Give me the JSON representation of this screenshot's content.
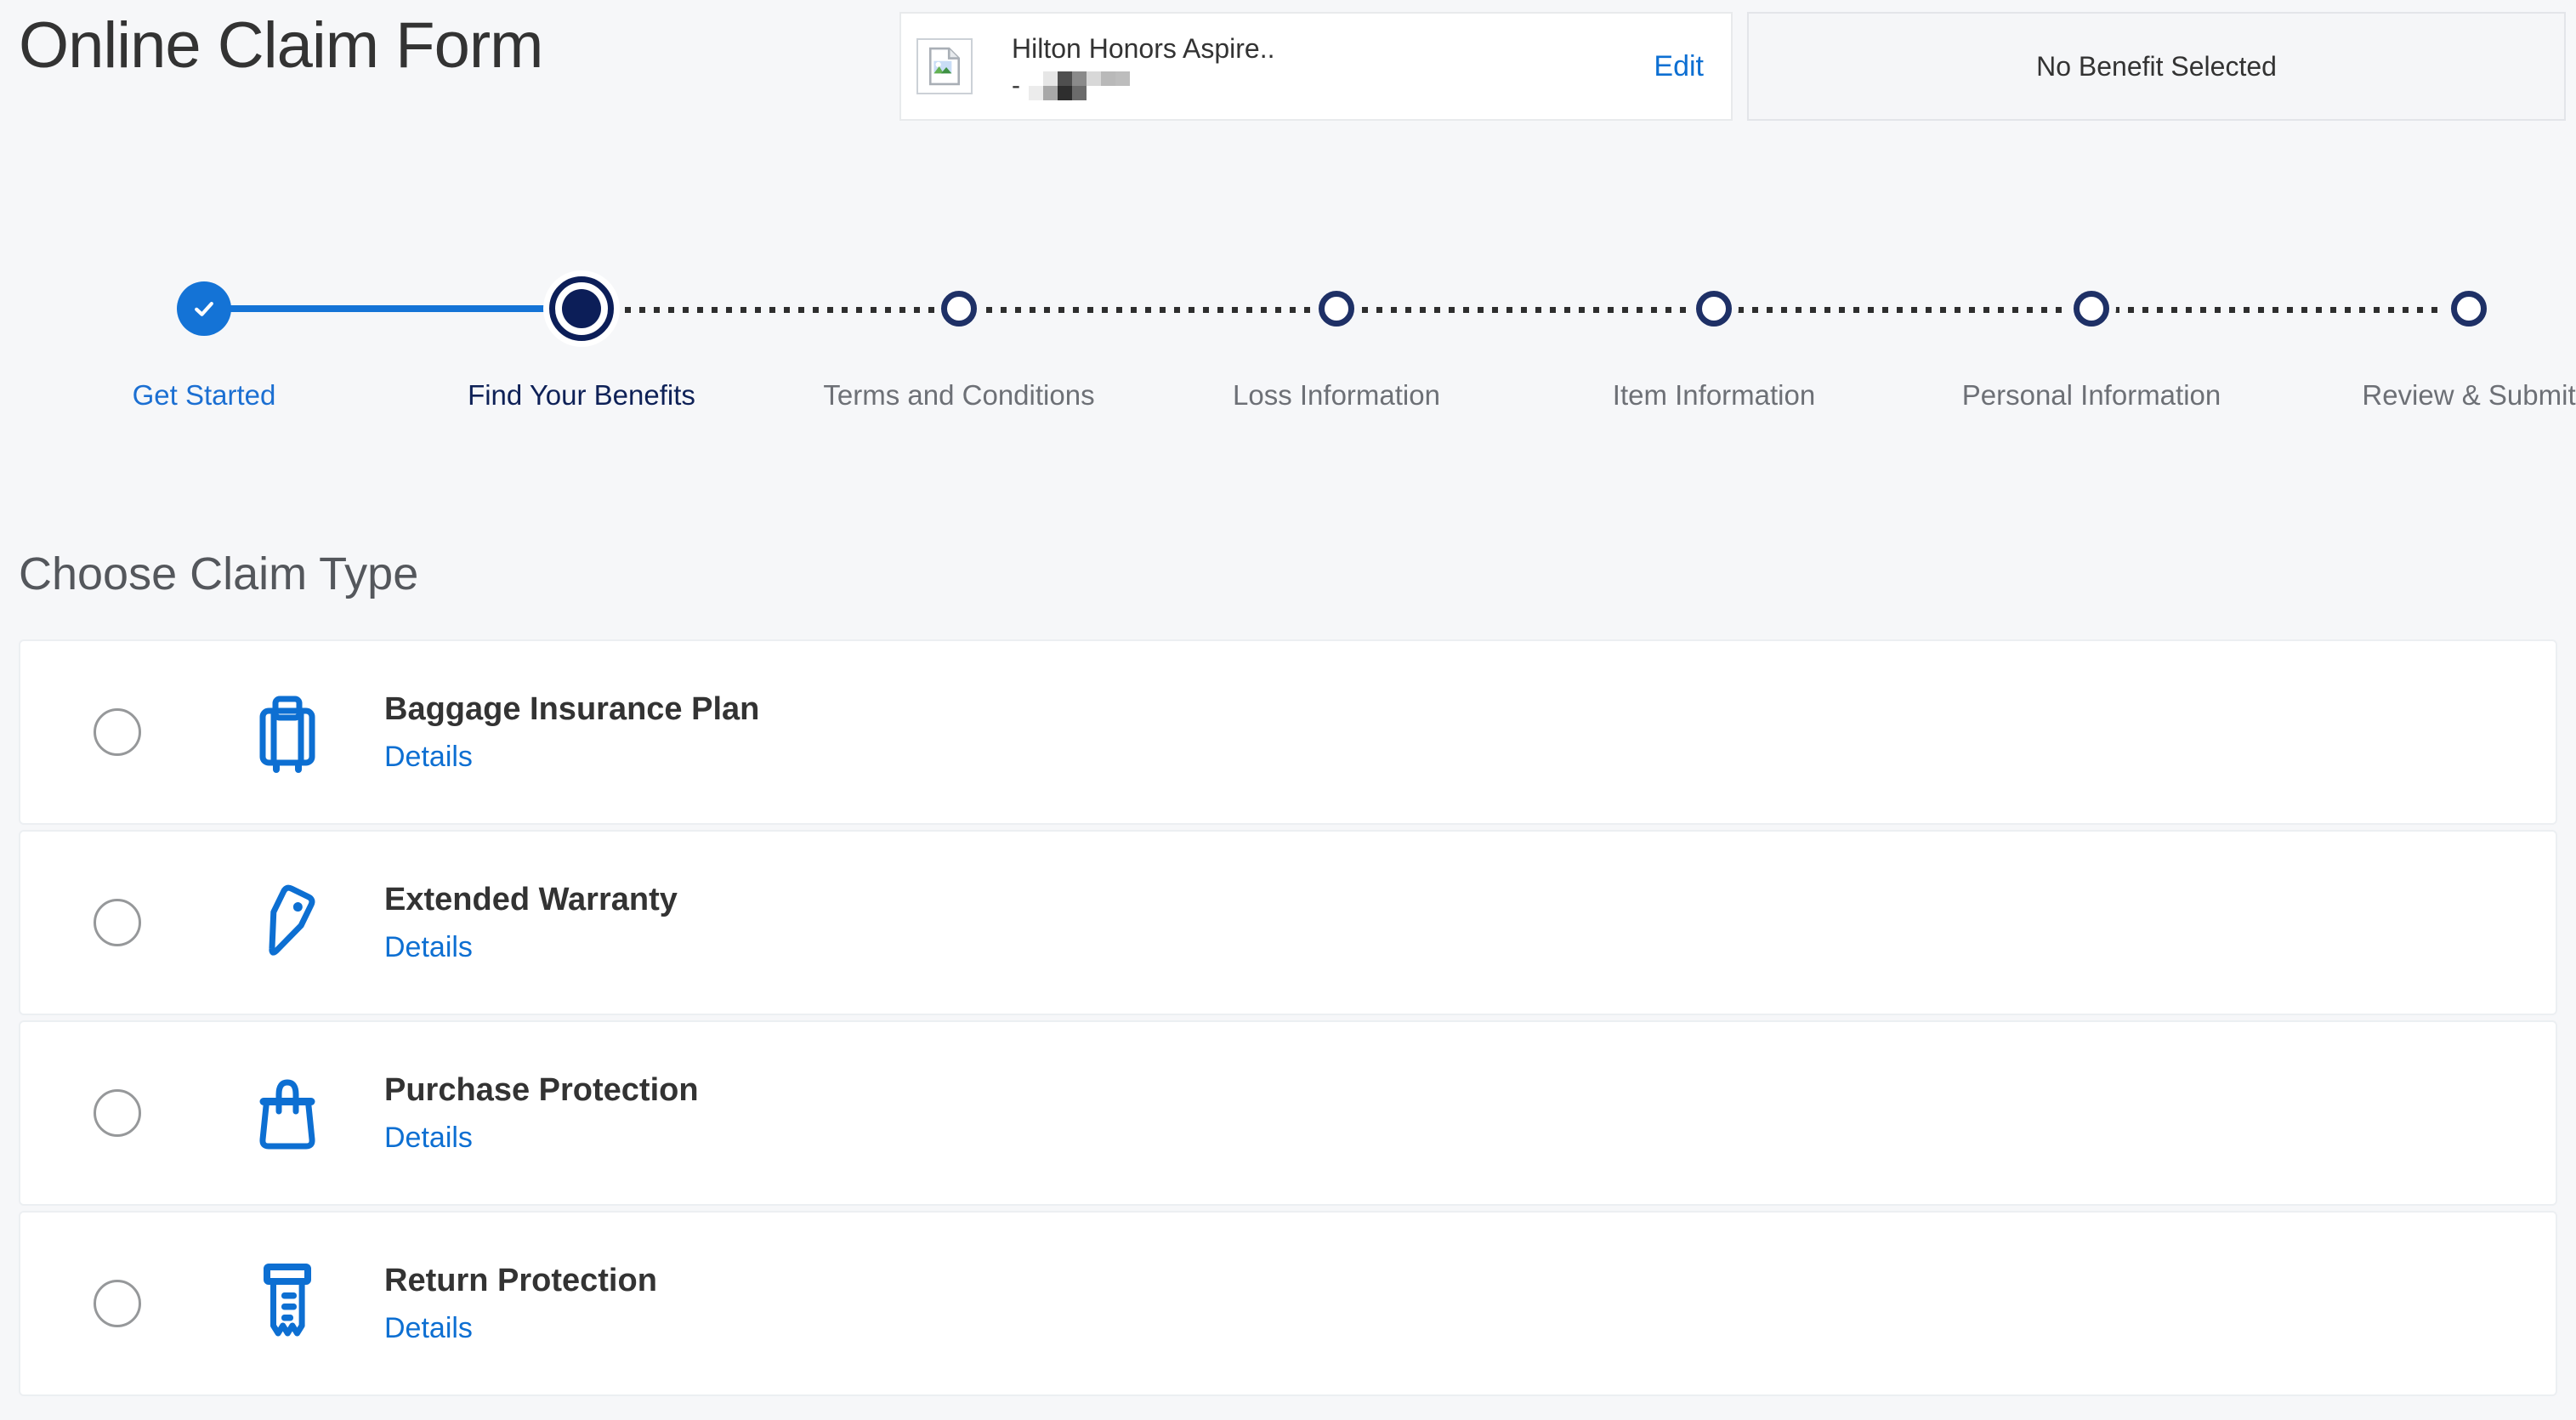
{
  "page": {
    "title": "Online Claim Form"
  },
  "account_card": {
    "product_name": "Hilton Honors Aspire..",
    "mask_prefix": "-",
    "edit_label": "Edit"
  },
  "benefit_card": {
    "label": "No Benefit Selected"
  },
  "stepper": {
    "steps": [
      {
        "label": "Get Started",
        "state": "complete"
      },
      {
        "label": "Find Your Benefits",
        "state": "current"
      },
      {
        "label": "Terms and Conditions",
        "state": "upcoming"
      },
      {
        "label": "Loss Information",
        "state": "upcoming"
      },
      {
        "label": "Item Information",
        "state": "upcoming"
      },
      {
        "label": "Personal Information",
        "state": "upcoming"
      },
      {
        "label": "Review & Submit",
        "state": "upcoming"
      }
    ]
  },
  "claim_section": {
    "heading": "Choose Claim Type",
    "options": [
      {
        "id": "baggage-insurance-plan",
        "title": "Baggage Insurance Plan",
        "details_label": "Details",
        "icon": "suitcase-icon"
      },
      {
        "id": "extended-warranty",
        "title": "Extended Warranty",
        "details_label": "Details",
        "icon": "price-tag-icon"
      },
      {
        "id": "purchase-protection",
        "title": "Purchase Protection",
        "details_label": "Details",
        "icon": "shopping-bag-icon"
      },
      {
        "id": "return-protection",
        "title": "Return Protection",
        "details_label": "Details",
        "icon": "receipt-icon"
      }
    ]
  },
  "colors": {
    "brand_blue": "#0d6fd2",
    "progress_blue": "#1473d6",
    "navy": "#0c1e58",
    "text_dark": "#333333",
    "text_gray": "#6d7076",
    "heading_gray": "#54575c",
    "page_background": "#f6f7f9"
  }
}
